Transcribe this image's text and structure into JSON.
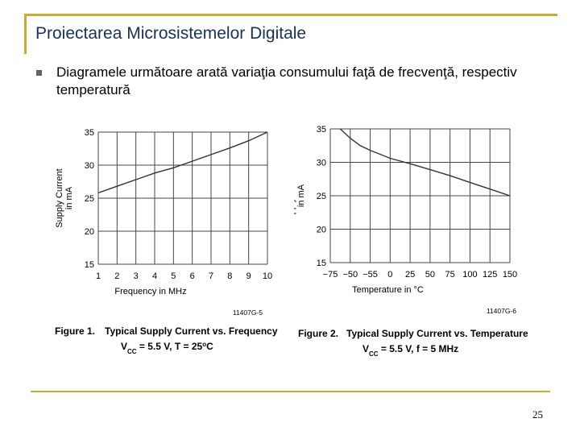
{
  "slide": {
    "title": "Proiectarea Microsistemelor Digitale",
    "bullet": "Diagramele următoare arată variaţia consumului faţă de frecvenţă, respectiv temperatură",
    "page_number": "25"
  },
  "colors": {
    "frame": "#c7ae2e",
    "title": "#16335b",
    "curve": "#333333",
    "grid": "#444444"
  },
  "chart_data": [
    {
      "type": "line",
      "figure_label": "Figure 1.",
      "title": "Typical Supply Current vs. Frequency",
      "condition_parts": [
        "V",
        "CC",
        " = 5.5 V, T = 25",
        "o",
        "C"
      ],
      "code": "11407G-5",
      "xlabel": "Frequency in MHz",
      "ylabel_lines": [
        "Supply Current",
        "in mA"
      ],
      "x_ticks": [
        "1",
        "2",
        "3",
        "4",
        "5",
        "6",
        "7",
        "8",
        "9",
        "10"
      ],
      "y_ticks": [
        "15",
        "20",
        "25",
        "30",
        "35"
      ],
      "xlim": [
        1,
        10
      ],
      "ylim": [
        15,
        35
      ],
      "grid": true,
      "series": [
        {
          "x": [
            1,
            2,
            3,
            4,
            5,
            6,
            7,
            8,
            9,
            10
          ],
          "y": [
            25.8,
            26.8,
            27.8,
            28.8,
            29.6,
            30.6,
            31.6,
            32.6,
            33.7,
            35.0
          ]
        }
      ]
    },
    {
      "type": "line",
      "figure_label": "Figure 2.",
      "title": "Typical Supply Current vs. Temperature",
      "condition_parts": [
        "V",
        "CC",
        " = 5.5 V, f = 5 MHz"
      ],
      "code": "11407G-6",
      "xlabel": "Temperature in °C",
      "ylabel_lines": [
        "Supply Current",
        "in mA"
      ],
      "x_ticks": [
        "−75",
        "−50",
        "−55",
        "0",
        "25",
        "50",
        "75",
        "100",
        "125",
        "150"
      ],
      "y_ticks": [
        "15",
        "20",
        "25",
        "30",
        "35"
      ],
      "xlim": [
        0,
        9
      ],
      "ylim": [
        15,
        35
      ],
      "grid": true,
      "series": [
        {
          "x": [
            0.5,
            1,
            1.5,
            2,
            3,
            4,
            5,
            6,
            7,
            8,
            9
          ],
          "y": [
            35.0,
            33.6,
            32.5,
            31.8,
            30.6,
            29.8,
            28.9,
            28.0,
            27.0,
            26.0,
            25.0
          ]
        }
      ]
    }
  ]
}
